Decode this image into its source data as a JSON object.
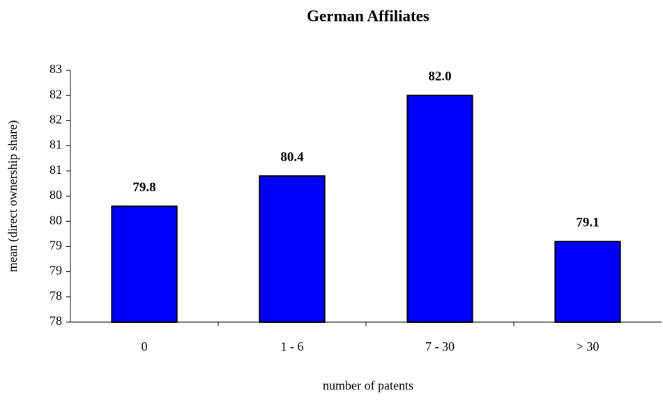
{
  "chart_data": {
    "type": "bar",
    "title": "German Affiliates",
    "x_label": "number of patents",
    "y_label": "mean (direct ownership share)",
    "categories": [
      "0",
      "1 - 6",
      "7 - 30",
      "> 30"
    ],
    "values": [
      79.8,
      80.4,
      82.0,
      79.1
    ],
    "value_labels": [
      "79.8",
      "80.4",
      "82.0",
      "79.1"
    ],
    "color": "#0000ff",
    "ylim": [
      77.5,
      82.5
    ],
    "yticks": [
      {
        "value": 77.5,
        "label": "78"
      },
      78,
      {
        "value": 78.5,
        "label": "79"
      },
      79,
      {
        "value": 79.5,
        "label": "80"
      },
      80,
      {
        "value": 80.5,
        "label": "81"
      },
      81,
      {
        "value": 81.5,
        "label": "82"
      },
      82,
      {
        "value": 82.5,
        "label": "83"
      }
    ],
    "grid": false
  }
}
